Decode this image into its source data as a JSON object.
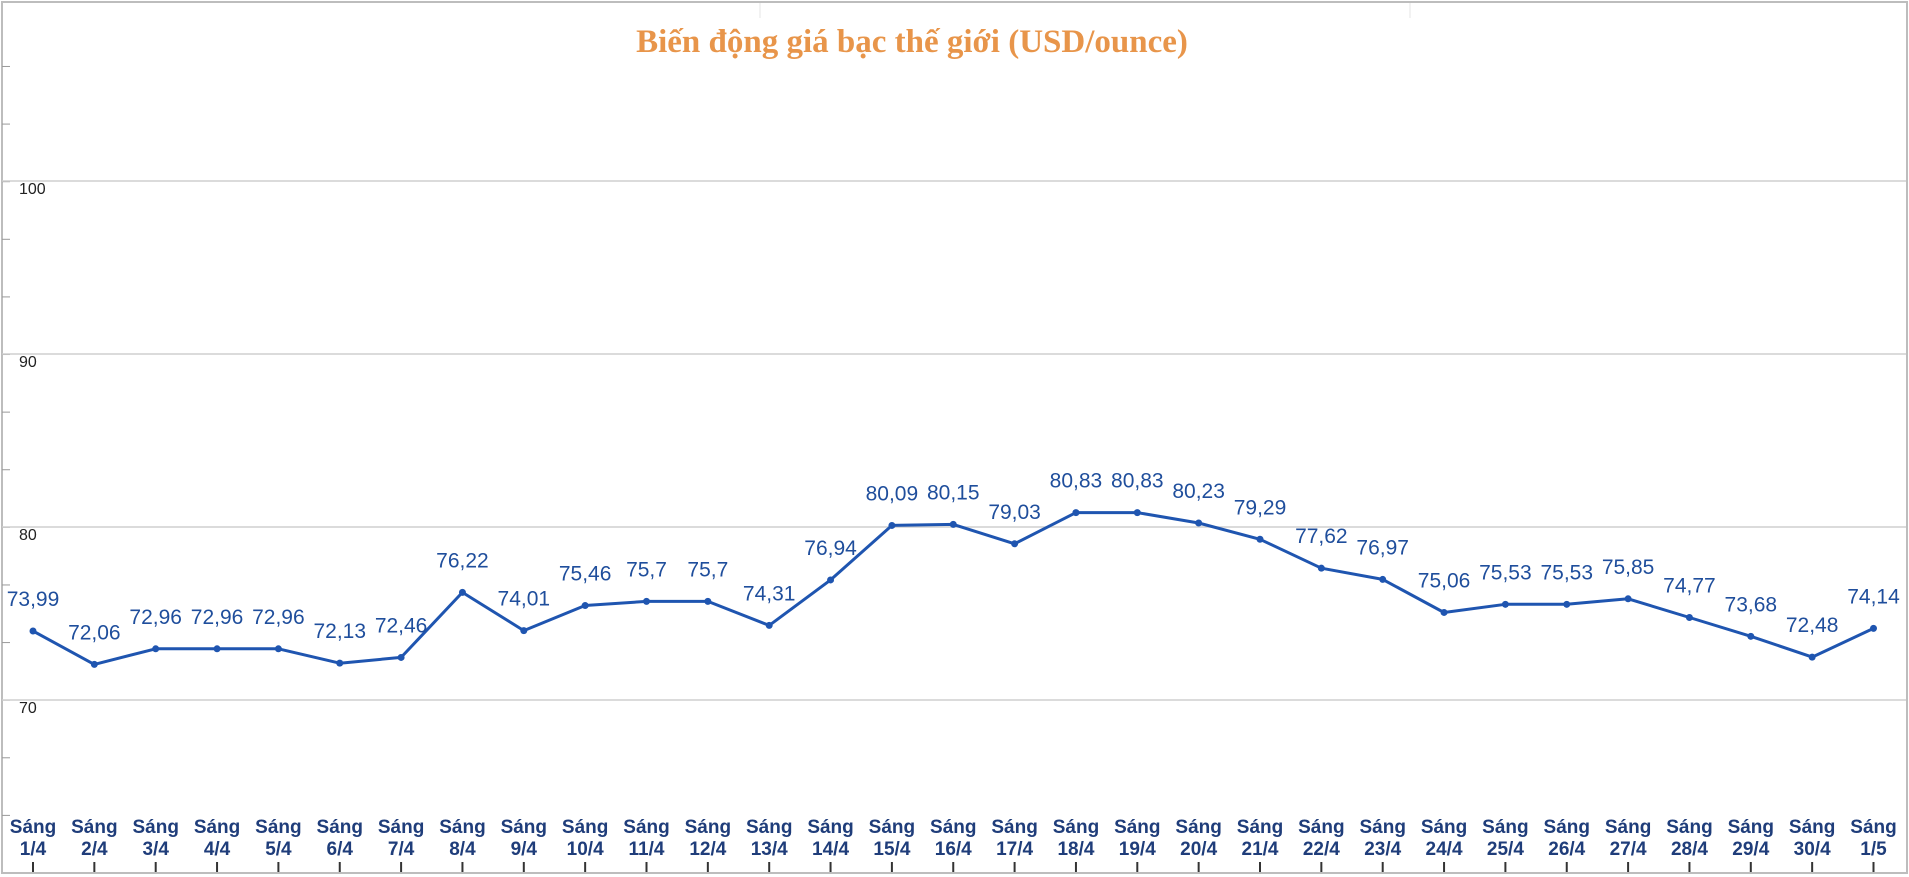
{
  "chart_data": {
    "type": "line",
    "title": "Biến động giá bạc thế giới (USD/ounce)",
    "ylim": [
      60,
      110
    ],
    "yticks": [
      70,
      80,
      90,
      100
    ],
    "grid": true,
    "color": "#1f55b0",
    "categories": [
      [
        "Sáng",
        "1/4"
      ],
      [
        "Sáng",
        "2/4"
      ],
      [
        "Sáng",
        "3/4"
      ],
      [
        "Sáng",
        "4/4"
      ],
      [
        "Sáng",
        "5/4"
      ],
      [
        "Sáng",
        "6/4"
      ],
      [
        "Sáng",
        "7/4"
      ],
      [
        "Sáng",
        "8/4"
      ],
      [
        "Sáng",
        "9/4"
      ],
      [
        "Sáng",
        "10/4"
      ],
      [
        "Sáng",
        "11/4"
      ],
      [
        "Sáng",
        "12/4"
      ],
      [
        "Sáng",
        "13/4"
      ],
      [
        "Sáng",
        "14/4"
      ],
      [
        "Sáng",
        "15/4"
      ],
      [
        "Sáng",
        "16/4"
      ],
      [
        "Sáng",
        "17/4"
      ],
      [
        "Sáng",
        "18/4"
      ],
      [
        "Sáng",
        "19/4"
      ],
      [
        "Sáng",
        "20/4"
      ],
      [
        "Sáng",
        "21/4"
      ],
      [
        "Sáng",
        "22/4"
      ],
      [
        "Sáng",
        "23/4"
      ],
      [
        "Sáng",
        "24/4"
      ],
      [
        "Sáng",
        "25/4"
      ],
      [
        "Sáng",
        "26/4"
      ],
      [
        "Sáng",
        "27/4"
      ],
      [
        "Sáng",
        "28/4"
      ],
      [
        "Sáng",
        "29/4"
      ],
      [
        "Sáng",
        "30/4"
      ],
      [
        "Sáng",
        "1/5"
      ]
    ],
    "values": [
      73.99,
      72.06,
      72.96,
      72.96,
      72.96,
      72.13,
      72.46,
      76.22,
      74.01,
      75.46,
      75.7,
      75.7,
      74.31,
      76.94,
      80.09,
      80.15,
      79.03,
      80.83,
      80.83,
      80.23,
      79.29,
      77.62,
      76.97,
      75.06,
      75.53,
      75.53,
      75.85,
      74.77,
      73.68,
      72.48,
      74.14
    ],
    "data_labels": [
      "73,99",
      "72,06",
      "72,96",
      "72,96",
      "72,96",
      "72,13",
      "72,46",
      "76,22",
      "74,01",
      "75,46",
      "75,7",
      "75,7",
      "74,31",
      "76,94",
      "80,09",
      "80,15",
      "79,03",
      "80,83",
      "80,83",
      "80,23",
      "79,29",
      "77,62",
      "76,97",
      "75,06",
      "75,53",
      "75,53",
      "75,85",
      "74,77",
      "73,68",
      "72,48",
      "74,14"
    ]
  }
}
